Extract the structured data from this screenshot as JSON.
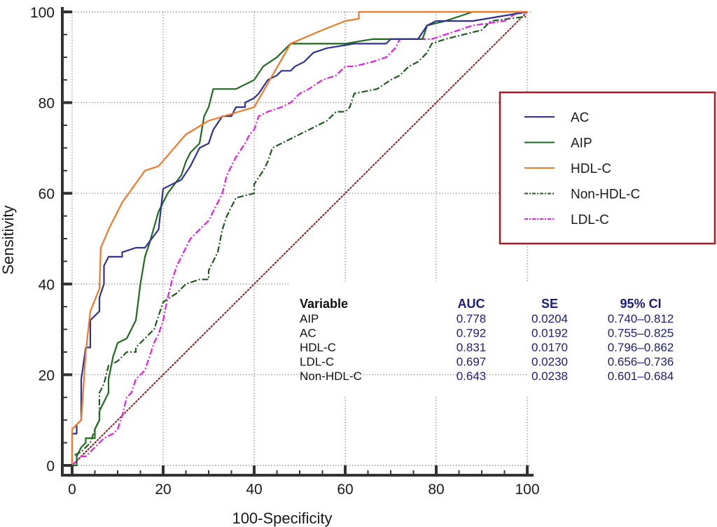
{
  "chart_data": {
    "type": "line",
    "title": "",
    "xlabel": "100-Specificity",
    "ylabel": "Sensitivity",
    "xlim": [
      0,
      100
    ],
    "ylim": [
      0,
      100
    ],
    "xticks": [
      0,
      20,
      40,
      60,
      80,
      100
    ],
    "yticks": [
      0,
      20,
      40,
      60,
      80,
      100
    ],
    "minor_tick_step": 5,
    "grid": true,
    "legend_position": "right",
    "reference_line": {
      "name": "Chance diagonal",
      "color": "#8b1a1a",
      "points": [
        [
          0,
          0
        ],
        [
          100,
          100
        ]
      ]
    },
    "series": [
      {
        "name": "AC",
        "color": "#2e3192",
        "dash": "solid",
        "points": [
          [
            0,
            0
          ],
          [
            0,
            7
          ],
          [
            1,
            7
          ],
          [
            1,
            9
          ],
          [
            2,
            10
          ],
          [
            2,
            19
          ],
          [
            3,
            26
          ],
          [
            4,
            26
          ],
          [
            4,
            32
          ],
          [
            6,
            34
          ],
          [
            6,
            37
          ],
          [
            7,
            40
          ],
          [
            7,
            44
          ],
          [
            8,
            46
          ],
          [
            11,
            46
          ],
          [
            11,
            47
          ],
          [
            14,
            48
          ],
          [
            16,
            48
          ],
          [
            19,
            52
          ],
          [
            20,
            61
          ],
          [
            22,
            62
          ],
          [
            24,
            63
          ],
          [
            26,
            66
          ],
          [
            27,
            68
          ],
          [
            28,
            70
          ],
          [
            30,
            71
          ],
          [
            31,
            74
          ],
          [
            33,
            77
          ],
          [
            35,
            77
          ],
          [
            36,
            79
          ],
          [
            38,
            79
          ],
          [
            38,
            80
          ],
          [
            40,
            81
          ],
          [
            41,
            82
          ],
          [
            43,
            85
          ],
          [
            45,
            86
          ],
          [
            46,
            87
          ],
          [
            48,
            87
          ],
          [
            49,
            88
          ],
          [
            51,
            89
          ],
          [
            53,
            91
          ],
          [
            56,
            92
          ],
          [
            62,
            93
          ],
          [
            69,
            93
          ],
          [
            70,
            94
          ],
          [
            76,
            94
          ],
          [
            78,
            97
          ],
          [
            80,
            98
          ],
          [
            88,
            98
          ],
          [
            100,
            100
          ]
        ]
      },
      {
        "name": "AIP",
        "color": "#1e6b1e",
        "dash": "solid",
        "points": [
          [
            0,
            0
          ],
          [
            1,
            0
          ],
          [
            1,
            2
          ],
          [
            2,
            4
          ],
          [
            3,
            5
          ],
          [
            3,
            6
          ],
          [
            5,
            6
          ],
          [
            5,
            8
          ],
          [
            6,
            10
          ],
          [
            6,
            12
          ],
          [
            8,
            16
          ],
          [
            8,
            19
          ],
          [
            9,
            24
          ],
          [
            10,
            27
          ],
          [
            12,
            28
          ],
          [
            14,
            32
          ],
          [
            15,
            40
          ],
          [
            16,
            46
          ],
          [
            17,
            49
          ],
          [
            19,
            56
          ],
          [
            20,
            58
          ],
          [
            21,
            60
          ],
          [
            24,
            64
          ],
          [
            25,
            67
          ],
          [
            26,
            69
          ],
          [
            28,
            71
          ],
          [
            29,
            77
          ],
          [
            30,
            79
          ],
          [
            31,
            83
          ],
          [
            36,
            83
          ],
          [
            38,
            84
          ],
          [
            40,
            85
          ],
          [
            42,
            88
          ],
          [
            45,
            90
          ],
          [
            48,
            93
          ],
          [
            60,
            93
          ],
          [
            66,
            94
          ],
          [
            77,
            94
          ],
          [
            78,
            97
          ],
          [
            82,
            98
          ],
          [
            88,
            100
          ],
          [
            100,
            100
          ]
        ]
      },
      {
        "name": "HDL-C",
        "color": "#f07a2a",
        "dash": "solid",
        "points": [
          [
            0,
            0
          ],
          [
            0,
            8
          ],
          [
            2,
            10
          ],
          [
            3,
            25
          ],
          [
            4,
            34
          ],
          [
            6,
            39
          ],
          [
            6.3,
            48
          ],
          [
            8,
            52
          ],
          [
            11,
            58
          ],
          [
            16,
            65
          ],
          [
            19,
            66
          ],
          [
            25,
            73
          ],
          [
            30,
            76
          ],
          [
            40,
            79
          ],
          [
            44,
            86
          ],
          [
            48,
            93
          ],
          [
            55,
            96
          ],
          [
            60,
            98
          ],
          [
            63,
            98.5
          ],
          [
            63,
            100
          ],
          [
            100,
            100
          ]
        ]
      },
      {
        "name": "Non-HDL-C",
        "color": "#1e5a1e",
        "dash": "dashdot",
        "points": [
          [
            0,
            0
          ],
          [
            0,
            2
          ],
          [
            2,
            3
          ],
          [
            4,
            5
          ],
          [
            5,
            8
          ],
          [
            6,
            10
          ],
          [
            6,
            16
          ],
          [
            7,
            18
          ],
          [
            8,
            22
          ],
          [
            10,
            23
          ],
          [
            12,
            25
          ],
          [
            14,
            25
          ],
          [
            14,
            26
          ],
          [
            18,
            30
          ],
          [
            20,
            36
          ],
          [
            23,
            38
          ],
          [
            25,
            40
          ],
          [
            28,
            41
          ],
          [
            30,
            41
          ],
          [
            30,
            43
          ],
          [
            32,
            47
          ],
          [
            33,
            52
          ],
          [
            34,
            55
          ],
          [
            35,
            57
          ],
          [
            36,
            59
          ],
          [
            40,
            60
          ],
          [
            40,
            62
          ],
          [
            42,
            65
          ],
          [
            43,
            67
          ],
          [
            44,
            70
          ],
          [
            46,
            71
          ],
          [
            48,
            72
          ],
          [
            52,
            74
          ],
          [
            54,
            75
          ],
          [
            56,
            76
          ],
          [
            58,
            78
          ],
          [
            60,
            78
          ],
          [
            61,
            79
          ],
          [
            62,
            82
          ],
          [
            67,
            83
          ],
          [
            70,
            85
          ],
          [
            72,
            86
          ],
          [
            74,
            88
          ],
          [
            76,
            89
          ],
          [
            78,
            91
          ],
          [
            79,
            93
          ],
          [
            82,
            94
          ],
          [
            86,
            95
          ],
          [
            90,
            96
          ],
          [
            92,
            98
          ],
          [
            100,
            99
          ]
        ]
      },
      {
        "name": "LDL-C",
        "color": "#e020e0",
        "dash": "dashdot",
        "points": [
          [
            0,
            0
          ],
          [
            1,
            1
          ],
          [
            2,
            2
          ],
          [
            3,
            2
          ],
          [
            4,
            3
          ],
          [
            5,
            4
          ],
          [
            6,
            5
          ],
          [
            7,
            6
          ],
          [
            9,
            7
          ],
          [
            10,
            8
          ],
          [
            11,
            11
          ],
          [
            12,
            15
          ],
          [
            13,
            16
          ],
          [
            14,
            19
          ],
          [
            15,
            20
          ],
          [
            16,
            21
          ],
          [
            17,
            24
          ],
          [
            18,
            27
          ],
          [
            19,
            29
          ],
          [
            20,
            32
          ],
          [
            21,
            37
          ],
          [
            22,
            41
          ],
          [
            23,
            44
          ],
          [
            24,
            46
          ],
          [
            26,
            50
          ],
          [
            28,
            52
          ],
          [
            30,
            54
          ],
          [
            31,
            56
          ],
          [
            32,
            58
          ],
          [
            33,
            60
          ],
          [
            34,
            64
          ],
          [
            35,
            66
          ],
          [
            36,
            68
          ],
          [
            38,
            71
          ],
          [
            39,
            73
          ],
          [
            40,
            74
          ],
          [
            41,
            77
          ],
          [
            43,
            78
          ],
          [
            46,
            79
          ],
          [
            48,
            80
          ],
          [
            50,
            82
          ],
          [
            52,
            83
          ],
          [
            55,
            85
          ],
          [
            58,
            86
          ],
          [
            60,
            88
          ],
          [
            62,
            88
          ],
          [
            66,
            89
          ],
          [
            69,
            90
          ],
          [
            70,
            91
          ],
          [
            71,
            92
          ],
          [
            72,
            94
          ],
          [
            79,
            94
          ],
          [
            82,
            95
          ],
          [
            85,
            96
          ],
          [
            88,
            97
          ],
          [
            95,
            98
          ],
          [
            98,
            100
          ],
          [
            100,
            100
          ]
        ]
      }
    ],
    "legend": [
      "AC",
      "AIP",
      "HDL-C",
      "Non-HDL-C",
      "LDL-C"
    ],
    "auc_table": {
      "headers": [
        "Variable",
        "AUC",
        "SE",
        "95% CI"
      ],
      "rows": [
        {
          "variable": "AIP",
          "auc": "0.778",
          "se": "0.0204",
          "ci": "0.740–0.812"
        },
        {
          "variable": "AC",
          "auc": "0.792",
          "se": "0.0192",
          "ci": "0.755–0.825"
        },
        {
          "variable": "HDL-C",
          "auc": "0.831",
          "se": "0.0170",
          "ci": "0.796–0.862"
        },
        {
          "variable": "LDL-C",
          "auc": "0.697",
          "se": "0.0230",
          "ci": "0.656–0.736"
        },
        {
          "variable": "Non-HDL-C",
          "auc": "0.643",
          "se": "0.0238",
          "ci": "0.601–0.684"
        }
      ]
    },
    "legend_border_color": "#a51c24"
  }
}
